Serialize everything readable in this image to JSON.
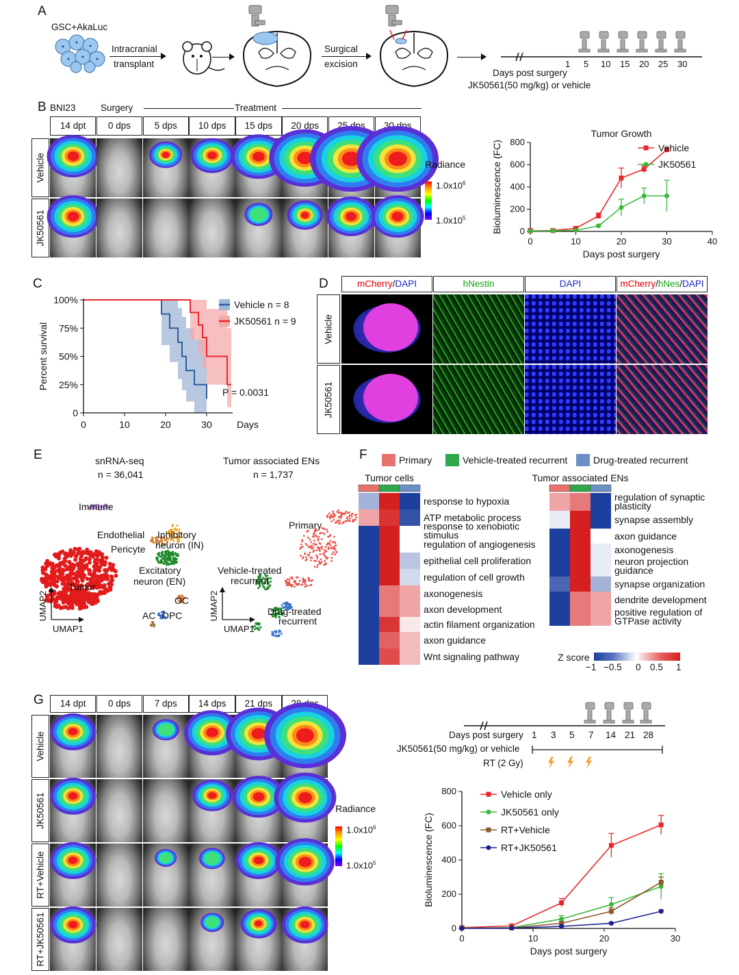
{
  "panels": {
    "A": "A",
    "B": "B",
    "C": "C",
    "D": "D",
    "E": "E",
    "F": "F",
    "G": "G"
  },
  "panelA": {
    "cells_label": "GSC+AkaLuc",
    "step1_top": "Intracranial",
    "step1_bottom": "transplant",
    "step2_top": "Surgical",
    "step2_bottom": "excision",
    "timeline_ticks": [
      "1",
      "5",
      "10",
      "15",
      "20",
      "25",
      "30"
    ],
    "timeline_label": "Days post surgery",
    "treatment_label": "JK50561(50 mg/kg) or vehicle"
  },
  "panelB": {
    "model": "BNI23",
    "surgery": "Surgery",
    "treatment": "Treatment",
    "timepoints": [
      "14 dpt",
      "0 dps",
      "5 dps",
      "10 dps",
      "15 dps",
      "20 dps",
      "25 dps",
      "30 dps"
    ],
    "rows": [
      "Vehicle",
      "JK50561"
    ],
    "vehicle_signal": [
      0.55,
      0,
      0.25,
      0.4,
      0.6,
      0.85,
      1.0,
      1.0
    ],
    "drug_signal": [
      0.55,
      0,
      0,
      0,
      0.18,
      0.3,
      0.5,
      0.55
    ],
    "radiance_title": "Radiance",
    "radiance_max": "1.0x10",
    "radiance_max_exp": "6",
    "radiance_min": "1.0x10",
    "radiance_min_exp": "5"
  },
  "chart_data": [
    {
      "id": "B-tumor-growth",
      "type": "line",
      "title": "Tumor Growth",
      "xlabel": "Days post surgery",
      "ylabel": "Bioluminescence (FC)",
      "xlim": [
        0,
        40
      ],
      "ylim": [
        0,
        800
      ],
      "xticks": [
        0,
        10,
        20,
        30,
        40
      ],
      "yticks": [
        0,
        200,
        400,
        600,
        800
      ],
      "series": [
        {
          "name": "Vehicle",
          "color": "#e8262a",
          "marker": "square",
          "x": [
            0,
            5,
            10,
            15,
            20,
            25,
            30
          ],
          "y": [
            5,
            8,
            28,
            140,
            480,
            560,
            735
          ],
          "err": [
            20,
            15,
            10,
            25,
            90,
            30,
            0
          ]
        },
        {
          "name": "JK50561",
          "color": "#3cb83c",
          "marker": "circle",
          "x": [
            0,
            5,
            10,
            15,
            20,
            25,
            30
          ],
          "y": [
            3,
            5,
            10,
            50,
            215,
            320,
            320
          ],
          "err": [
            5,
            5,
            5,
            10,
            75,
            70,
            140
          ]
        }
      ]
    },
    {
      "id": "C-survival",
      "type": "line",
      "xlabel": "Days",
      "ylabel": "Percent survival",
      "xlim": [
        0,
        35
      ],
      "ylim": [
        0,
        100
      ],
      "xticks": [
        0,
        10,
        20,
        30
      ],
      "yticks": [
        "0",
        "25%",
        "50%",
        "75%",
        "100%"
      ],
      "pvalue": "P = 0.0031",
      "series": [
        {
          "name": "Vehicle n = 8",
          "color": "#2b5e9e",
          "band": "#9fb6d6",
          "x": [
            0,
            19,
            19,
            21,
            21,
            23,
            23,
            24,
            24,
            25,
            25,
            27,
            27,
            30,
            30
          ],
          "y": [
            100,
            100,
            87.5,
            87.5,
            75,
            75,
            62.5,
            62.5,
            50,
            50,
            37.5,
            37.5,
            25,
            25,
            12.5
          ],
          "lo": [
            100,
            100,
            60,
            60,
            45,
            45,
            30,
            30,
            20,
            20,
            10,
            10,
            0,
            0,
            0
          ],
          "hi": [
            100,
            100,
            100,
            100,
            100,
            100,
            93,
            93,
            85,
            85,
            75,
            75,
            65,
            65,
            55
          ]
        },
        {
          "name": "JK50561 n = 9",
          "color": "#e8262a",
          "band": "#f4a9a9",
          "x": [
            0,
            26,
            26,
            28,
            28,
            29,
            29,
            30,
            30,
            35,
            35,
            36
          ],
          "y": [
            100,
            100,
            88.9,
            88.9,
            77.8,
            77.8,
            66.7,
            66.7,
            50,
            50,
            25,
            25
          ],
          "lo": [
            100,
            100,
            65,
            65,
            52,
            52,
            40,
            40,
            25,
            25,
            5,
            5
          ],
          "hi": [
            100,
            100,
            100,
            100,
            100,
            100,
            100,
            100,
            92,
            92,
            75,
            75
          ]
        }
      ]
    },
    {
      "id": "F-heatmap-tumor-cells",
      "type": "heatmap",
      "title": "Tumor cells",
      "columns": [
        "Primary",
        "Vehicle-treated recurrent",
        "Drug-treated recurrent"
      ],
      "rows": [
        "response to hypoxia",
        "ATP metabolic process",
        "response to xenobiotic stimulus",
        "regulation of angiogenesis",
        "epithelial cell proliferation",
        "regulation of cell growth",
        "axonogenesis",
        "axon development",
        "actin filament organization",
        "axon guidance",
        "Wnt signaling pathway"
      ],
      "values": [
        [
          -0.4,
          1,
          -1
        ],
        [
          0.4,
          0.9,
          -0.9
        ],
        [
          -1,
          1,
          0
        ],
        [
          -1,
          1,
          0
        ],
        [
          -1,
          1,
          -0.3
        ],
        [
          -1,
          1,
          -0.2
        ],
        [
          -1,
          0.6,
          0.4
        ],
        [
          -1,
          0.6,
          0.4
        ],
        [
          -1,
          0.9,
          0.1
        ],
        [
          -1,
          0.7,
          0.3
        ],
        [
          -1,
          0.8,
          0.3
        ]
      ]
    },
    {
      "id": "F-heatmap-tumor-ENs",
      "type": "heatmap",
      "title": "Tumor associated ENs",
      "columns": [
        "Primary",
        "Vehicle-treated recurrent",
        "Drug-treated recurrent"
      ],
      "rows": [
        "regulation of synaptic plasticity",
        "synapse assembly",
        "axon guidance",
        "axonogenesis",
        "neuron projection guidance",
        "synapse organization",
        "dendrite development",
        "positive regulation of GTPase activity"
      ],
      "values": [
        [
          0.4,
          0.6,
          -1
        ],
        [
          -0.1,
          1,
          -1
        ],
        [
          -1,
          1,
          0
        ],
        [
          -1,
          1,
          -0.1
        ],
        [
          -1,
          1,
          -0.1
        ],
        [
          -0.8,
          1,
          -0.4
        ],
        [
          -1,
          0.6,
          0.4
        ],
        [
          -1,
          0.6,
          0.4
        ]
      ]
    },
    {
      "id": "G-growth",
      "type": "line",
      "xlabel": "Days post surgery",
      "ylabel": "Bioluminescence (FC)",
      "xlim": [
        0,
        30
      ],
      "ylim": [
        0,
        800
      ],
      "xticks": [
        0,
        10,
        20,
        30
      ],
      "yticks": [
        0,
        200,
        400,
        600,
        800
      ],
      "series": [
        {
          "name": "Vehicle only",
          "color": "#e8262a",
          "marker": "square",
          "x": [
            0,
            7,
            14,
            21,
            28
          ],
          "y": [
            5,
            15,
            150,
            485,
            605
          ],
          "err": [
            5,
            5,
            25,
            70,
            55
          ]
        },
        {
          "name": "JK50561 only",
          "color": "#3cb83c",
          "marker": "circle",
          "x": [
            0,
            7,
            14,
            21,
            28
          ],
          "y": [
            2,
            5,
            55,
            140,
            245
          ],
          "err": [
            2,
            3,
            20,
            40,
            75
          ]
        },
        {
          "name": "RT+Vehicle",
          "color": "#8b5a2b",
          "marker": "square",
          "x": [
            0,
            7,
            14,
            21,
            28
          ],
          "y": [
            2,
            3,
            30,
            100,
            270
          ],
          "err": [
            2,
            2,
            10,
            20,
            30
          ]
        },
        {
          "name": "RT+JK50561",
          "color": "#1b1f8f",
          "marker": "circle",
          "x": [
            0,
            7,
            14,
            21,
            28
          ],
          "y": [
            1,
            2,
            12,
            30,
            100
          ],
          "err": [
            1,
            1,
            3,
            5,
            8
          ]
        }
      ]
    }
  ],
  "panelD": {
    "col_labels": [
      {
        "parts": [
          {
            "t": "mCherry",
            "c": "#e00000"
          },
          {
            "t": "/",
            "c": "#111"
          },
          {
            "t": "DAPI",
            "c": "#1a23c8"
          }
        ]
      },
      {
        "parts": [
          {
            "t": "hNestin",
            "c": "#12a012"
          }
        ]
      },
      {
        "parts": [
          {
            "t": "DAPI",
            "c": "#1a23c8"
          }
        ]
      },
      {
        "parts": [
          {
            "t": "mCherry",
            "c": "#e00000"
          },
          {
            "t": "/",
            "c": "#111"
          },
          {
            "t": "hNes",
            "c": "#12a012"
          },
          {
            "t": "/",
            "c": "#111"
          },
          {
            "t": "DAPI",
            "c": "#1a23c8"
          }
        ]
      }
    ],
    "rows": [
      "Vehicle",
      "JK50561"
    ]
  },
  "panelE": {
    "left_title": "snRNA-seq",
    "left_n": "n = 36,041",
    "right_title": "Tumor associated ENs",
    "right_n": "n = 1,737",
    "left_labels": [
      "Immune",
      "Endothelial",
      "Pericyte",
      "Inhibitory",
      "neuron (IN)",
      "Excitatory",
      "neuron (EN)",
      "Tumor",
      "OC",
      "AC",
      "OPC"
    ],
    "right_labels": [
      "Primary",
      "Vehicle-treated",
      "recurrent",
      "Drug-treated",
      "recurrent"
    ],
    "axis_y": "UMAP2",
    "axis_x": "UMAP1"
  },
  "panelF": {
    "legend": [
      {
        "label": "Primary",
        "color": "#e8716b"
      },
      {
        "label": "Vehicle-treated recurrent",
        "color": "#2ea84a"
      },
      {
        "label": "Drug-treated recurrent",
        "color": "#6b8fc7"
      }
    ],
    "zscore_title": "Z score",
    "zscore_ticks": [
      "−1",
      "−0.5",
      "0",
      "0.5",
      "1"
    ]
  },
  "panelG": {
    "timepoints": [
      "14 dpt",
      "0 dps",
      "7 dps",
      "14 dps",
      "21 dps",
      "28 dps"
    ],
    "rows": [
      "Vehicle",
      "JK50561",
      "RT+Vehicle",
      "RT+JK50561"
    ],
    "signal": [
      [
        0.45,
        0,
        0.15,
        0.6,
        0.75,
        1.0
      ],
      [
        0.45,
        0,
        0,
        0.35,
        0.55,
        0.7
      ],
      [
        0.45,
        0,
        0.08,
        0.15,
        0.45,
        0.65
      ],
      [
        0.45,
        0,
        0,
        0.1,
        0.3,
        0.45
      ]
    ],
    "timeline_label": "Days post surgery",
    "timeline_ticks": [
      "1",
      "3",
      "5",
      "7",
      "14",
      "21",
      "28"
    ],
    "treatment_label": "JK50561(50 mg/kg) or vehicle",
    "rt_label": "RT (2 Gy)",
    "radiance_title": "Radiance",
    "radiance_max": "1.0x10",
    "radiance_max_exp": "6",
    "radiance_min": "1.0x10",
    "radiance_min_exp": "5"
  }
}
